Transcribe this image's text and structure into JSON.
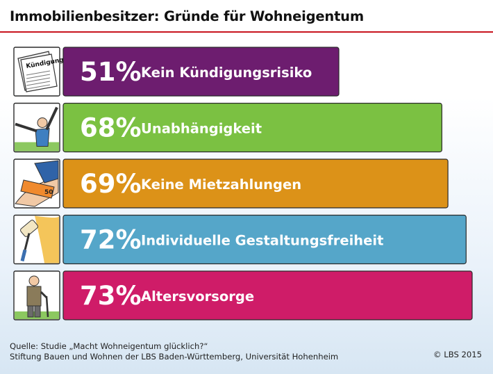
{
  "title": "Immobilienbesitzer: Gründe für Wohneigentum",
  "chart_data": {
    "type": "bar",
    "orientation": "horizontal",
    "categories": [
      "Kein Kündigungsrisiko",
      "Unabhängigkeit",
      "Keine Mietzahlungen",
      "Individuelle Gestaltungsfreiheit",
      "Altersvorsorge"
    ],
    "values": [
      51,
      68,
      69,
      72,
      73
    ],
    "value_labels": [
      "51%",
      "68%",
      "69%",
      "72%",
      "73%"
    ],
    "colors": [
      "#6d1d6f",
      "#7bc142",
      "#dc9218",
      "#55a6c9",
      "#cf1c68"
    ],
    "icons": [
      "kuendigung-document-icon",
      "arms-raised-person-icon",
      "hand-giving-banknote-icon",
      "paint-roller-icon",
      "elderly-man-cane-icon"
    ],
    "icon_texts": [
      "Kündigung",
      "",
      "50",
      "",
      ""
    ],
    "unit": "%"
  },
  "footer": {
    "source_line1": "Quelle: Studie „Macht Wohneigentum glücklich?“",
    "source_line2": "Stiftung Bauen und Wohnen der LBS Baden-Württemberg, Universität Hohenheim",
    "copyright": "© LBS 2015"
  }
}
